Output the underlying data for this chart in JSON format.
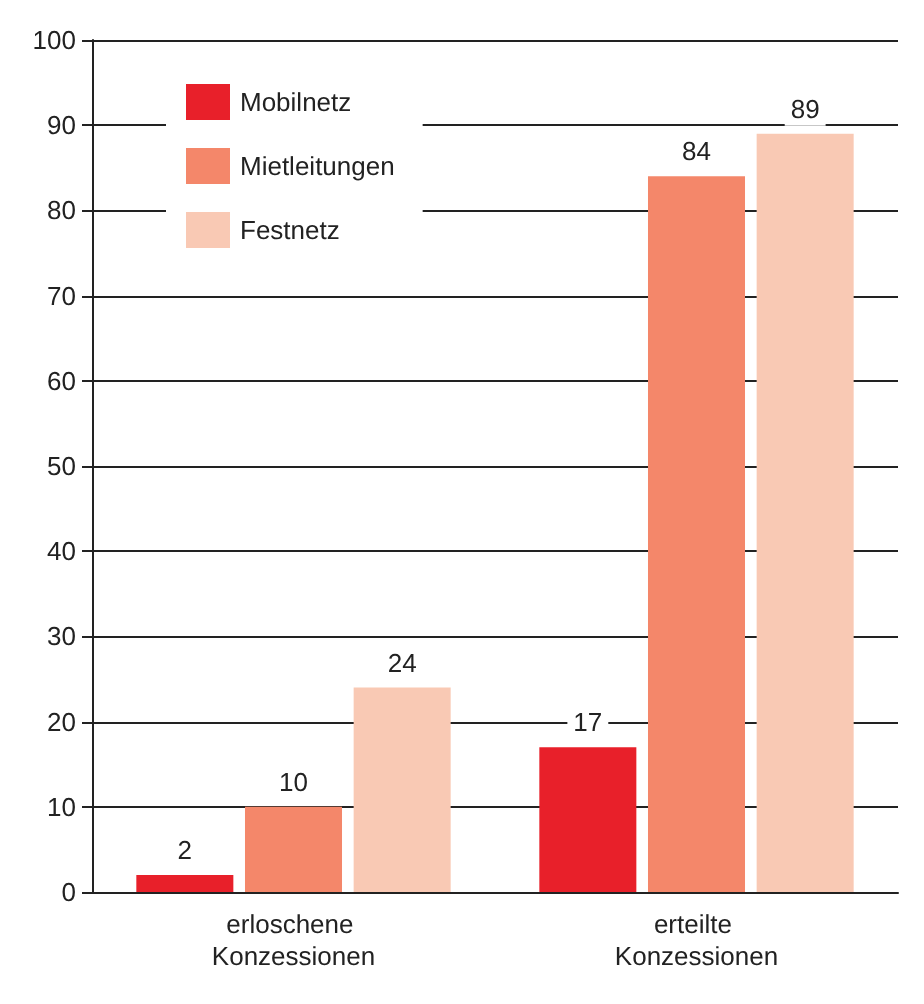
{
  "chart_data": {
    "type": "bar",
    "categories": [
      "erloschene Konzessionen",
      "erteilte Konzessionen"
    ],
    "series": [
      {
        "name": "Mobilnetz",
        "color": "#e8202a",
        "values": [
          2,
          17
        ]
      },
      {
        "name": "Mietleitungen",
        "color": "#f4876a",
        "values": [
          10,
          84
        ]
      },
      {
        "name": "Festnetz",
        "color": "#f9c9b4",
        "values": [
          24,
          89
        ]
      }
    ],
    "ylim": [
      0,
      100
    ],
    "yticks": [
      0,
      10,
      20,
      30,
      40,
      50,
      60,
      70,
      80,
      90,
      100
    ],
    "grid": "y",
    "legend": "top left",
    "data_labels": true
  }
}
